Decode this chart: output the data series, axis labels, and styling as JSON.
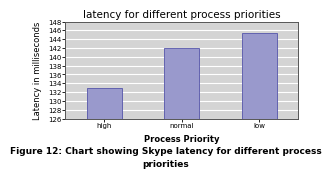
{
  "title": "latency for different process priorities",
  "categories": [
    "high",
    "normal",
    "low"
  ],
  "values": [
    133,
    142,
    145.5
  ],
  "bar_color": "#9999cc",
  "bar_edgecolor": "#5555aa",
  "xlabel": "Process Priority",
  "ylabel": "Latency in milliseconds",
  "ylim": [
    126,
    148
  ],
  "yticks": [
    126,
    128,
    130,
    132,
    134,
    136,
    138,
    140,
    142,
    144,
    146,
    148
  ],
  "background_color": "#d4d4d4",
  "caption_line1": "Figure 12: Chart showing Skype latency for different process",
  "caption_line2": "priorities",
  "title_fontsize": 7.5,
  "axis_label_fontsize": 6,
  "tick_fontsize": 5,
  "caption_fontsize": 6.5
}
